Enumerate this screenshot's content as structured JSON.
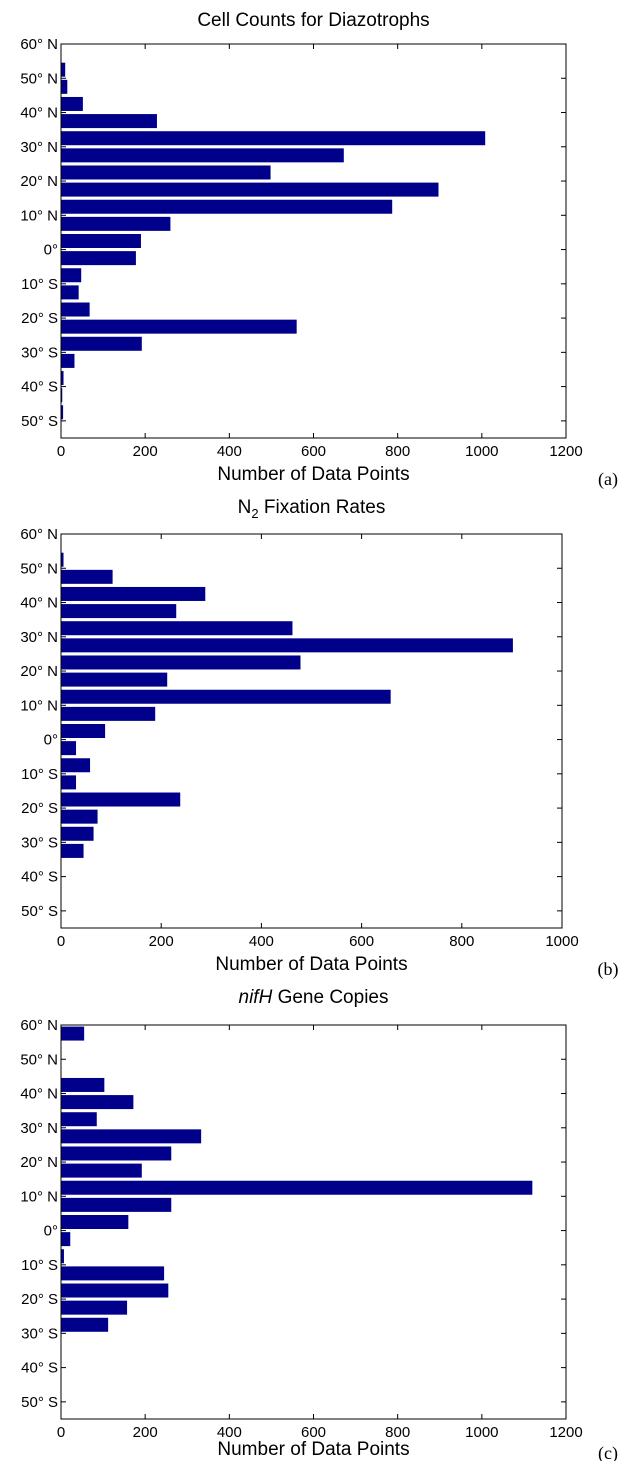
{
  "colors": {
    "bar": "#00008B"
  },
  "chart_data": [
    {
      "type": "bar",
      "orientation": "horizontal",
      "title": "Cell Counts for Diazotrophs",
      "xlabel": "Number of Data Points",
      "panel": "(a)",
      "xlim": [
        0,
        1200
      ],
      "xticks": [
        0,
        200,
        400,
        600,
        800,
        1000,
        1200
      ],
      "ylim": [
        -55,
        60
      ],
      "yticks": [
        60,
        50,
        40,
        30,
        20,
        10,
        0,
        -10,
        -20,
        -30,
        -40,
        -50
      ],
      "yticklabels": [
        "60° N",
        "50° N",
        "40° N",
        "30° N",
        "20° N",
        "10° N",
        "0°",
        "10° S",
        "20° S",
        "30° S",
        "40° S",
        "50° S"
      ],
      "grid": false,
      "bars": [
        {
          "lat": 52.5,
          "value": 10
        },
        {
          "lat": 47.5,
          "value": 15
        },
        {
          "lat": 42.5,
          "value": 52
        },
        {
          "lat": 37.5,
          "value": 228
        },
        {
          "lat": 32.5,
          "value": 1008
        },
        {
          "lat": 27.5,
          "value": 672
        },
        {
          "lat": 22.5,
          "value": 498
        },
        {
          "lat": 17.5,
          "value": 897
        },
        {
          "lat": 12.5,
          "value": 787
        },
        {
          "lat": 7.5,
          "value": 260
        },
        {
          "lat": 2.5,
          "value": 190
        },
        {
          "lat": -2.5,
          "value": 178
        },
        {
          "lat": -7.5,
          "value": 48
        },
        {
          "lat": -12.5,
          "value": 42
        },
        {
          "lat": -17.5,
          "value": 68
        },
        {
          "lat": -22.5,
          "value": 560
        },
        {
          "lat": -27.5,
          "value": 192
        },
        {
          "lat": -32.5,
          "value": 32
        },
        {
          "lat": -37.5,
          "value": 6
        },
        {
          "lat": -42.5,
          "value": 3
        },
        {
          "lat": -47.5,
          "value": 5
        }
      ]
    },
    {
      "type": "bar",
      "orientation": "horizontal",
      "title": "N",
      "title_sub": "2",
      "title_rest": " Fixation Rates",
      "xlabel": "Number of Data Points",
      "panel": "(b)",
      "xlim": [
        0,
        1000
      ],
      "xticks": [
        0,
        200,
        400,
        600,
        800,
        1000
      ],
      "ylim": [
        -55,
        60
      ],
      "yticks": [
        60,
        50,
        40,
        30,
        20,
        10,
        0,
        -10,
        -20,
        -30,
        -40,
        -50
      ],
      "yticklabels": [
        "60° N",
        "50° N",
        "40° N",
        "30° N",
        "20° N",
        "10° N",
        "0°",
        "10° S",
        "20° S",
        "30° S",
        "40° S",
        "50° S"
      ],
      "grid": false,
      "bars": [
        {
          "lat": 52.5,
          "value": 5
        },
        {
          "lat": 47.5,
          "value": 103
        },
        {
          "lat": 42.5,
          "value": 288
        },
        {
          "lat": 37.5,
          "value": 230
        },
        {
          "lat": 32.5,
          "value": 462
        },
        {
          "lat": 27.5,
          "value": 902
        },
        {
          "lat": 22.5,
          "value": 478
        },
        {
          "lat": 17.5,
          "value": 212
        },
        {
          "lat": 12.5,
          "value": 658
        },
        {
          "lat": 7.5,
          "value": 188
        },
        {
          "lat": 2.5,
          "value": 88
        },
        {
          "lat": -2.5,
          "value": 30
        },
        {
          "lat": -7.5,
          "value": 58
        },
        {
          "lat": -12.5,
          "value": 30
        },
        {
          "lat": -17.5,
          "value": 238
        },
        {
          "lat": -22.5,
          "value": 73
        },
        {
          "lat": -27.5,
          "value": 65
        },
        {
          "lat": -32.5,
          "value": 45
        },
        {
          "lat": -37.5,
          "value": 0
        },
        {
          "lat": -42.5,
          "value": 0
        }
      ]
    },
    {
      "type": "bar",
      "orientation": "horizontal",
      "title": "nifH",
      "title_rest": " Gene Copies",
      "xlabel": "Number of Data Points",
      "panel": "(c)",
      "xlim": [
        0,
        1200
      ],
      "xticks": [
        0,
        200,
        400,
        600,
        800,
        1000,
        1200
      ],
      "ylim": [
        -55,
        60
      ],
      "yticks": [
        60,
        50,
        40,
        30,
        20,
        10,
        0,
        -10,
        -20,
        -30,
        -40,
        -50
      ],
      "yticklabels": [
        "60° N",
        "50° N",
        "40° N",
        "30° N",
        "20° N",
        "10° N",
        "0°",
        "10° S",
        "20° S",
        "30° S",
        "40° S",
        "50° S"
      ],
      "grid": false,
      "bars": [
        {
          "lat": 57.5,
          "value": 55
        },
        {
          "lat": 42.5,
          "value": 103
        },
        {
          "lat": 37.5,
          "value": 172
        },
        {
          "lat": 32.5,
          "value": 85
        },
        {
          "lat": 27.5,
          "value": 333
        },
        {
          "lat": 22.5,
          "value": 262
        },
        {
          "lat": 17.5,
          "value": 192
        },
        {
          "lat": 12.5,
          "value": 1120
        },
        {
          "lat": 7.5,
          "value": 262
        },
        {
          "lat": 2.5,
          "value": 160
        },
        {
          "lat": -2.5,
          "value": 22
        },
        {
          "lat": -7.5,
          "value": 7
        },
        {
          "lat": -12.5,
          "value": 245
        },
        {
          "lat": -17.5,
          "value": 255
        },
        {
          "lat": -22.5,
          "value": 157
        },
        {
          "lat": -27.5,
          "value": 112
        }
      ]
    }
  ]
}
